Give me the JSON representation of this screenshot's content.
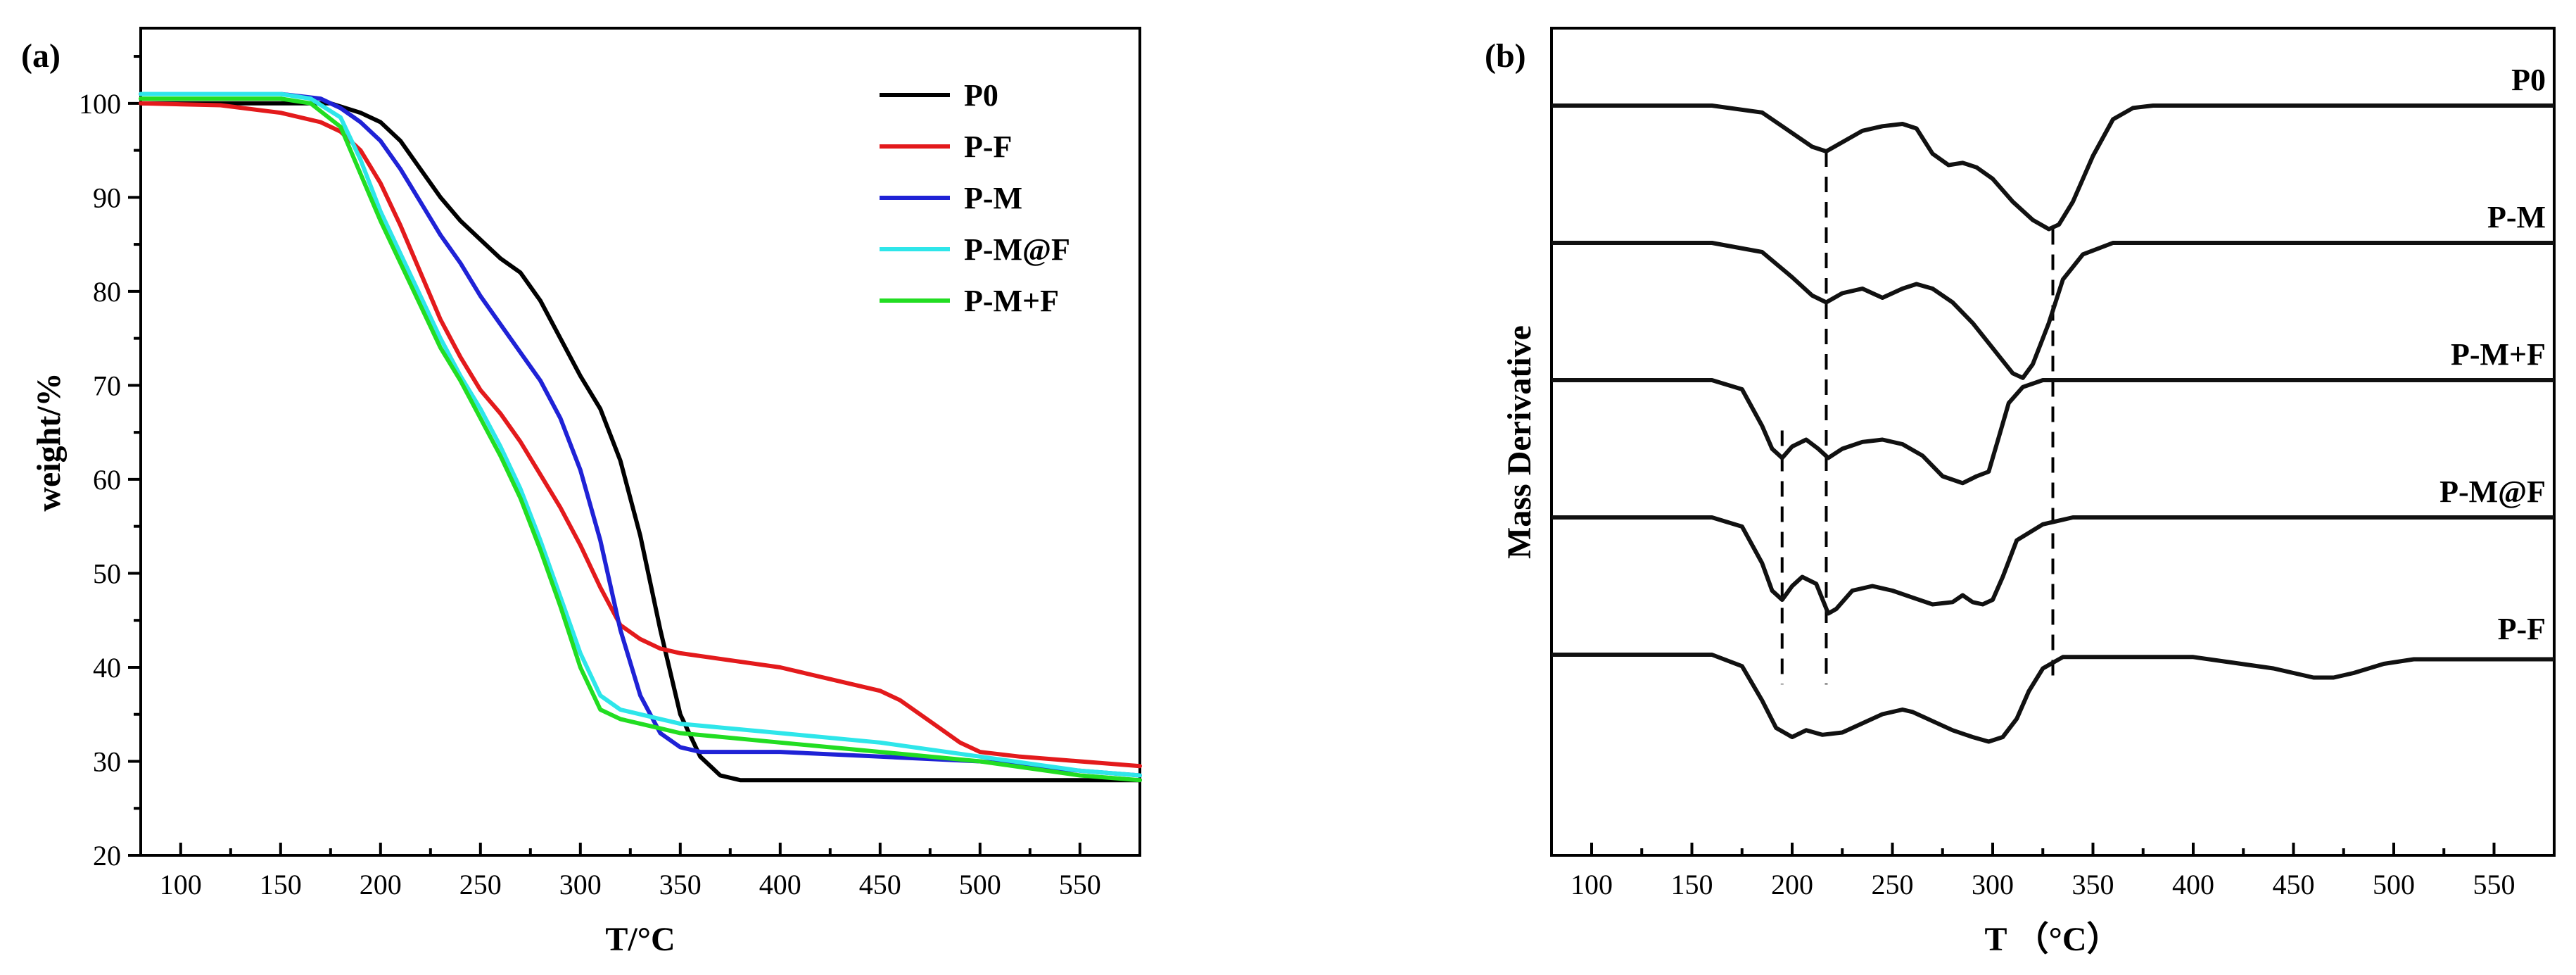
{
  "chart_data": [
    {
      "panel_label": "(a)",
      "type": "line",
      "xlabel": "T/°C",
      "ylabel": "weight/%",
      "xlim": [
        80,
        580
      ],
      "ylim": [
        20,
        108
      ],
      "xticks": [
        100,
        150,
        200,
        250,
        300,
        350,
        400,
        450,
        500,
        550
      ],
      "yticks": [
        20,
        30,
        40,
        50,
        60,
        70,
        80,
        90,
        100
      ],
      "legend_position": "top-right",
      "series": [
        {
          "name": "P0",
          "color": "#000000",
          "x": [
            80,
            150,
            175,
            190,
            200,
            210,
            220,
            230,
            240,
            250,
            260,
            270,
            280,
            290,
            300,
            310,
            320,
            330,
            340,
            350,
            360,
            370,
            380,
            400,
            450,
            500,
            550,
            580
          ],
          "y": [
            100,
            100,
            100,
            99,
            98,
            96,
            93,
            90,
            87.5,
            85.5,
            83.5,
            82,
            79,
            75,
            71,
            67.5,
            62,
            54,
            44,
            35,
            30.5,
            28.5,
            28,
            28,
            28,
            28,
            28,
            28
          ]
        },
        {
          "name": "P-F",
          "color": "#e31a1c",
          "x": [
            80,
            120,
            150,
            170,
            180,
            190,
            200,
            210,
            220,
            230,
            240,
            250,
            260,
            270,
            280,
            290,
            300,
            310,
            320,
            330,
            340,
            350,
            400,
            450,
            460,
            470,
            480,
            490,
            500,
            520,
            550,
            580
          ],
          "y": [
            100,
            99.8,
            99,
            98,
            97,
            95,
            91.5,
            87,
            82,
            77,
            73,
            69.5,
            67,
            64,
            60.5,
            57,
            53,
            48.5,
            44.5,
            43,
            42,
            41.5,
            40,
            37.5,
            36.5,
            35,
            33.5,
            32,
            31,
            30.5,
            30,
            29.5
          ]
        },
        {
          "name": "P-M",
          "color": "#1f22d6",
          "x": [
            80,
            150,
            170,
            180,
            190,
            200,
            210,
            220,
            230,
            240,
            250,
            260,
            270,
            280,
            290,
            300,
            310,
            320,
            330,
            340,
            350,
            360,
            400,
            450,
            500,
            550,
            580
          ],
          "y": [
            101,
            101,
            100.5,
            99.5,
            98,
            96,
            93,
            89.5,
            86,
            83,
            79.5,
            76.5,
            73.5,
            70.5,
            66.5,
            61,
            53.5,
            44,
            37,
            33,
            31.5,
            31,
            31,
            30.5,
            30,
            29,
            28.5
          ]
        },
        {
          "name": "P-M@F",
          "color": "#2ee6ea",
          "x": [
            80,
            150,
            165,
            180,
            190,
            200,
            210,
            220,
            230,
            240,
            250,
            260,
            270,
            280,
            290,
            300,
            310,
            320,
            330,
            340,
            350,
            400,
            450,
            500,
            550,
            580
          ],
          "y": [
            101,
            101,
            100.5,
            98.5,
            94,
            88.5,
            84,
            79.5,
            75,
            71,
            67.5,
            63.5,
            59,
            53.5,
            47.5,
            41.5,
            37,
            35.5,
            35,
            34.5,
            34,
            33,
            32,
            30.5,
            29,
            28.5
          ]
        },
        {
          "name": "P-M+F",
          "color": "#22dd22",
          "x": [
            80,
            150,
            165,
            180,
            190,
            200,
            210,
            220,
            230,
            240,
            250,
            260,
            270,
            280,
            290,
            300,
            310,
            320,
            330,
            340,
            350,
            400,
            450,
            500,
            550,
            580
          ],
          "y": [
            100.5,
            100.5,
            100,
            97.5,
            92.5,
            87.5,
            83,
            78.5,
            74,
            70.5,
            66.5,
            62.5,
            58,
            52.5,
            46.5,
            40,
            35.5,
            34.5,
            34,
            33.5,
            33,
            32,
            31,
            30,
            28.5,
            28
          ]
        }
      ]
    },
    {
      "panel_label": "(b)",
      "type": "line",
      "xlabel": "T （°C）",
      "ylabel": "Mass Derivative",
      "xlim": [
        80,
        580
      ],
      "xticks": [
        100,
        150,
        200,
        250,
        300,
        350,
        400,
        450,
        500,
        550
      ],
      "y_axis_ticks": "none",
      "reference_lines_x": [
        195,
        217,
        330
      ],
      "series": [
        {
          "name": "P0",
          "baseline": 0.0,
          "x": [
            80,
            160,
            185,
            200,
            210,
            217,
            225,
            235,
            245,
            255,
            262,
            270,
            278,
            285,
            292,
            300,
            310,
            320,
            328,
            333,
            340,
            350,
            360,
            370,
            380,
            580
          ],
          "y": [
            0,
            0,
            -0.3,
            -1.2,
            -1.8,
            -2.0,
            -1.6,
            -1.1,
            -0.9,
            -0.8,
            -1.0,
            -2.1,
            -2.6,
            -2.5,
            -2.7,
            -3.2,
            -4.2,
            -5.0,
            -5.4,
            -5.2,
            -4.2,
            -2.2,
            -0.6,
            -0.1,
            0,
            0
          ]
        },
        {
          "name": "P-M",
          "baseline": -6.0,
          "x": [
            80,
            160,
            185,
            200,
            210,
            217,
            225,
            235,
            245,
            255,
            262,
            270,
            280,
            290,
            300,
            310,
            315,
            320,
            328,
            335,
            345,
            360,
            380,
            580
          ],
          "y": [
            0,
            0,
            -0.4,
            -1.5,
            -2.3,
            -2.6,
            -2.2,
            -2.0,
            -2.4,
            -2.0,
            -1.8,
            -2.0,
            -2.6,
            -3.5,
            -4.6,
            -5.7,
            -5.9,
            -5.3,
            -3.5,
            -1.6,
            -0.5,
            0,
            0,
            0
          ]
        },
        {
          "name": "P-M+F",
          "baseline": -12.0,
          "x": [
            80,
            160,
            175,
            185,
            190,
            195,
            200,
            207,
            213,
            218,
            225,
            235,
            245,
            255,
            265,
            275,
            285,
            292,
            298,
            303,
            308,
            315,
            325,
            340,
            580
          ],
          "y": [
            0,
            0,
            -0.4,
            -2.0,
            -3.0,
            -3.4,
            -2.9,
            -2.6,
            -3.0,
            -3.4,
            -3.0,
            -2.7,
            -2.6,
            -2.8,
            -3.3,
            -4.2,
            -4.5,
            -4.2,
            -4.0,
            -2.5,
            -1.0,
            -0.3,
            0,
            0,
            0
          ]
        },
        {
          "name": "P-M@F",
          "baseline": -18.0,
          "x": [
            80,
            160,
            175,
            185,
            190,
            195,
            200,
            205,
            212,
            218,
            222,
            230,
            240,
            250,
            260,
            270,
            280,
            285,
            290,
            295,
            300,
            305,
            312,
            325,
            340,
            580
          ],
          "y": [
            0,
            0,
            -0.4,
            -2.0,
            -3.2,
            -3.6,
            -3.0,
            -2.6,
            -2.9,
            -4.2,
            -4.0,
            -3.2,
            -3.0,
            -3.2,
            -3.5,
            -3.8,
            -3.7,
            -3.4,
            -3.7,
            -3.8,
            -3.6,
            -2.6,
            -1.0,
            -0.3,
            0,
            0
          ]
        },
        {
          "name": "P-F",
          "baseline": -24.0,
          "x": [
            80,
            160,
            175,
            185,
            192,
            200,
            207,
            215,
            225,
            235,
            245,
            255,
            260,
            270,
            280,
            290,
            298,
            305,
            312,
            318,
            325,
            335,
            400,
            440,
            460,
            470,
            480,
            495,
            510,
            580
          ],
          "y": [
            0,
            0,
            -0.5,
            -2.0,
            -3.2,
            -3.6,
            -3.3,
            -3.5,
            -3.4,
            -3.0,
            -2.6,
            -2.4,
            -2.5,
            -2.9,
            -3.3,
            -3.6,
            -3.8,
            -3.6,
            -2.8,
            -1.6,
            -0.6,
            -0.1,
            -0.1,
            -0.6,
            -1.0,
            -1.0,
            -0.8,
            -0.4,
            -0.2,
            -0.2
          ]
        }
      ]
    }
  ]
}
